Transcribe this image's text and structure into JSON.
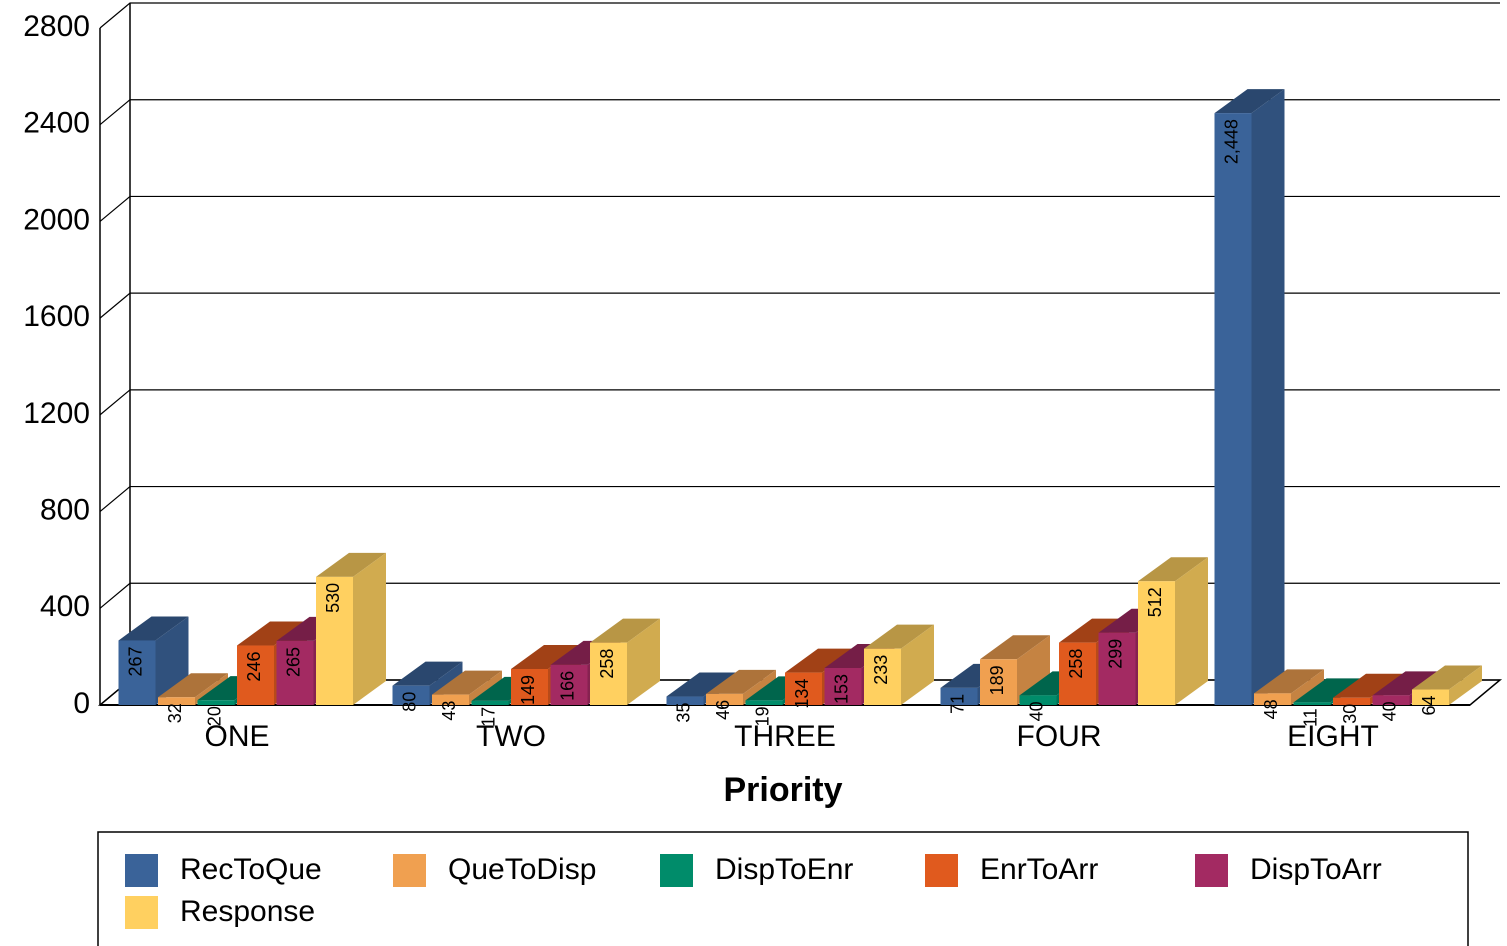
{
  "chart_data": {
    "type": "bar3d",
    "x_label": "Priority",
    "categories": [
      "ONE",
      "TWO",
      "THREE",
      "FOUR",
      "EIGHT"
    ],
    "series": [
      {
        "name": "RecToQue",
        "color": "#3a6399",
        "values": [
          267,
          80,
          35,
          71,
          2448
        ],
        "value_labels": [
          "267",
          "80",
          "35",
          "71",
          "2,448"
        ]
      },
      {
        "name": "QueToDisp",
        "color": "#f0a050",
        "values": [
          32,
          43,
          46,
          189,
          48
        ]
      },
      {
        "name": "DispToEnr",
        "color": "#008c6a",
        "values": [
          20,
          17,
          19,
          40,
          11
        ]
      },
      {
        "name": "EnrToArr",
        "color": "#e05a1e",
        "values": [
          246,
          149,
          134,
          258,
          30
        ]
      },
      {
        "name": "DispToArr",
        "color": "#a32a62",
        "values": [
          265,
          166,
          153,
          299,
          40
        ]
      },
      {
        "name": "Response",
        "color": "#ffd060",
        "values": [
          530,
          258,
          233,
          512,
          64
        ]
      }
    ],
    "ylim": [
      0,
      2800
    ],
    "yticks": [
      0,
      400,
      800,
      1200,
      1600,
      2000,
      2400,
      2800
    ],
    "grid": true,
    "legend": "bottom"
  }
}
